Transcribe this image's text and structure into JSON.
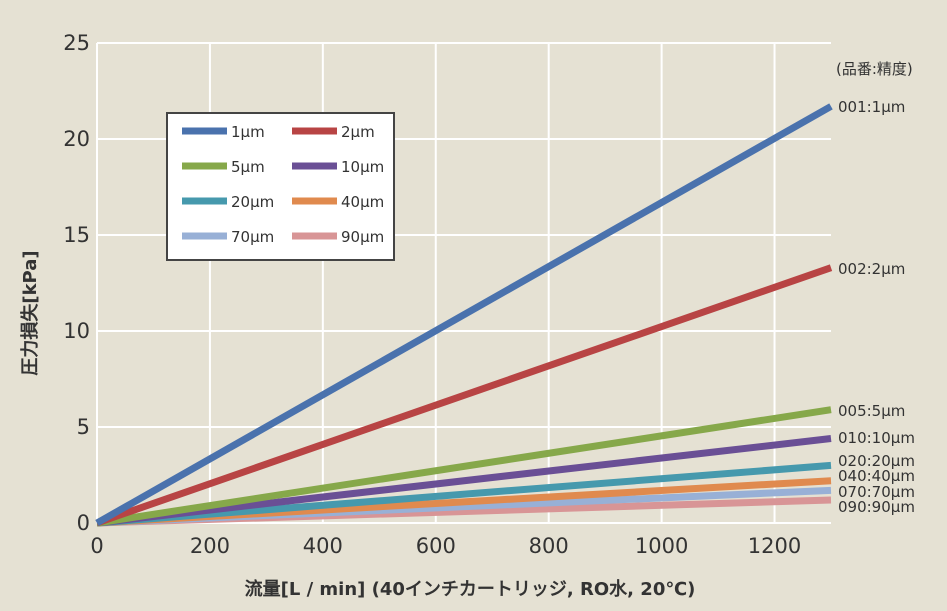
{
  "chart_data": {
    "type": "line",
    "title": "",
    "xlabel": "流量[L / min] (40インチカートリッジ, RO水, 20℃)",
    "ylabel": "圧力損失[kPa]",
    "xlim": [
      0,
      1300
    ],
    "ylim": [
      0,
      25
    ],
    "xticks": [
      "0",
      "200",
      "400",
      "600",
      "800",
      "1000",
      "1200"
    ],
    "yticks": [
      "0",
      "5",
      "10",
      "15",
      "20",
      "25"
    ],
    "grid": true,
    "legend_position": "top-left",
    "end_label_header": "(品番:精度)",
    "series": [
      {
        "name": "1μm",
        "end_label": "001:1μm",
        "color": "#4a72ad",
        "x": [
          0,
          1300
        ],
        "y": [
          0,
          21.7
        ]
      },
      {
        "name": "2μm",
        "end_label": "002:2μm",
        "color": "#b84444",
        "x": [
          0,
          1300
        ],
        "y": [
          0,
          13.3
        ]
      },
      {
        "name": "5μm",
        "end_label": "005:5μm",
        "color": "#86a84a",
        "x": [
          0,
          1300
        ],
        "y": [
          0,
          5.9
        ]
      },
      {
        "name": "10μm",
        "end_label": "010:10μm",
        "color": "#6a4f95",
        "x": [
          0,
          1300
        ],
        "y": [
          0,
          4.4
        ]
      },
      {
        "name": "20μm",
        "end_label": "020:20μm",
        "color": "#4699ad",
        "x": [
          0,
          1300
        ],
        "y": [
          0,
          3.0
        ]
      },
      {
        "name": "40μm",
        "end_label": "040:40μm",
        "color": "#e08a4e",
        "x": [
          0,
          1300
        ],
        "y": [
          0,
          2.2
        ]
      },
      {
        "name": "70μm",
        "end_label": "070:70μm",
        "color": "#98b0d6",
        "x": [
          0,
          1300
        ],
        "y": [
          0,
          1.7
        ]
      },
      {
        "name": "90μm",
        "end_label": "090:90μm",
        "color": "#d89596",
        "x": [
          0,
          1300
        ],
        "y": [
          0,
          1.2
        ]
      }
    ]
  }
}
